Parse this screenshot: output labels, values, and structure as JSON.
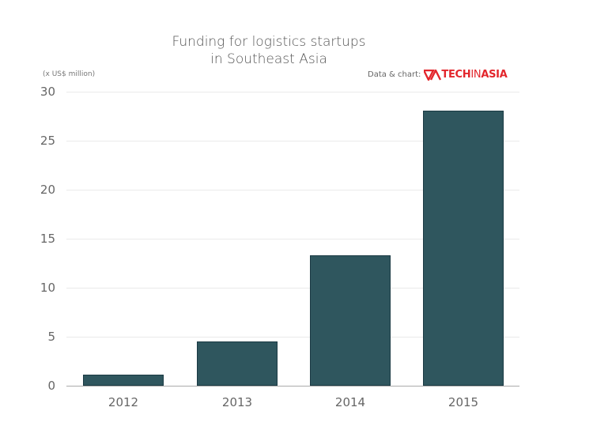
{
  "chart_data": {
    "type": "bar",
    "title": "Funding for logistics startups in Southeast Asia",
    "title_lines": [
      "Funding for logistics startups",
      "in Southeast Asia"
    ],
    "xlabel": "",
    "ylabel": "(x US$ million)",
    "categories": [
      "2012",
      "2013",
      "2014",
      "2015"
    ],
    "values": [
      1.1,
      4.5,
      13.3,
      28.1
    ],
    "ylim": [
      0,
      30
    ],
    "yticks": [
      0,
      5,
      10,
      15,
      20,
      25,
      30
    ],
    "grid": true,
    "bar_color": "#2f565e",
    "credit": "Data & chart:",
    "logo": {
      "part1": "TECH",
      "part2": "IN",
      "part3": "ASIA",
      "color": "#e3262c"
    }
  }
}
